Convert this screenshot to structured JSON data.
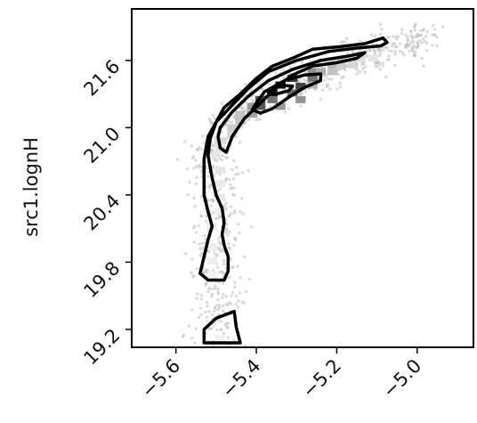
{
  "chart_data": {
    "type": "scatter",
    "subtype": "2d-histogram-with-density-contours",
    "title": "",
    "xlabel": "",
    "ylabel": "src1.lognH",
    "xlim": [
      -5.71,
      -4.86
    ],
    "ylim": [
      19.04,
      22.06
    ],
    "x_ticks": [
      -5.6,
      -5.4,
      -5.2,
      -5.0
    ],
    "y_ticks": [
      19.2,
      19.8,
      20.4,
      21.0,
      21.6
    ],
    "x_tick_labels": [
      "−5.6",
      "−5.4",
      "−5.2",
      "−5.0"
    ],
    "y_tick_labels": [
      "19.2",
      "19.8",
      "20.4",
      "21.0",
      "21.6"
    ],
    "grid": false,
    "colormap": "greys",
    "contour_color": "#000000",
    "scatter_color": "#bdbdbd",
    "density_cells": [
      {
        "x": -5.34,
        "y": 21.38,
        "v": 1.0
      },
      {
        "x": -5.36,
        "y": 21.31,
        "v": 0.95
      },
      {
        "x": -5.31,
        "y": 21.44,
        "v": 0.8
      },
      {
        "x": -5.29,
        "y": 21.37,
        "v": 0.75
      },
      {
        "x": -5.39,
        "y": 21.25,
        "v": 0.7
      },
      {
        "x": -5.39,
        "y": 21.19,
        "v": 0.68
      },
      {
        "x": -5.31,
        "y": 21.31,
        "v": 0.6
      },
      {
        "x": -5.36,
        "y": 21.25,
        "v": 0.55
      },
      {
        "x": -5.26,
        "y": 21.44,
        "v": 0.55
      },
      {
        "x": -5.26,
        "y": 21.5,
        "v": 0.45
      },
      {
        "x": -5.29,
        "y": 21.25,
        "v": 0.42
      },
      {
        "x": -5.41,
        "y": 21.19,
        "v": 0.4
      },
      {
        "x": -5.34,
        "y": 21.19,
        "v": 0.4
      },
      {
        "x": -5.41,
        "y": 21.12,
        "v": 0.35
      },
      {
        "x": -5.24,
        "y": 21.5,
        "v": 0.32
      },
      {
        "x": -5.26,
        "y": 21.38,
        "v": 0.3
      },
      {
        "x": -5.21,
        "y": 21.56,
        "v": 0.28
      },
      {
        "x": -5.44,
        "y": 21.06,
        "v": 0.22
      },
      {
        "x": -5.44,
        "y": 21.12,
        "v": 0.22
      },
      {
        "x": -5.21,
        "y": 21.5,
        "v": 0.22
      },
      {
        "x": -5.46,
        "y": 21.0,
        "v": 0.18
      },
      {
        "x": -5.46,
        "y": 20.94,
        "v": 0.16
      },
      {
        "x": -5.19,
        "y": 21.56,
        "v": 0.18
      },
      {
        "x": -5.16,
        "y": 21.56,
        "v": 0.14
      },
      {
        "x": -5.49,
        "y": 20.88,
        "v": 0.12
      },
      {
        "x": -5.49,
        "y": 20.81,
        "v": 0.1
      },
      {
        "x": -5.14,
        "y": 21.62,
        "v": 0.1
      },
      {
        "x": -5.11,
        "y": 21.62,
        "v": 0.08
      },
      {
        "x": -5.51,
        "y": 20.75,
        "v": 0.08
      },
      {
        "x": -5.49,
        "y": 20.62,
        "v": 0.07
      },
      {
        "x": -5.49,
        "y": 20.5,
        "v": 0.06
      },
      {
        "x": -5.49,
        "y": 20.38,
        "v": 0.06
      },
      {
        "x": -5.49,
        "y": 20.25,
        "v": 0.05
      },
      {
        "x": -5.51,
        "y": 20.12,
        "v": 0.05
      },
      {
        "x": -5.51,
        "y": 19.94,
        "v": 0.04
      },
      {
        "x": -5.51,
        "y": 19.81,
        "v": 0.04
      },
      {
        "x": -5.51,
        "y": 19.69,
        "v": 0.03
      },
      {
        "x": -5.51,
        "y": 19.25,
        "v": 0.03
      },
      {
        "x": -5.49,
        "y": 19.12,
        "v": 0.03
      }
    ],
    "contours": [
      {
        "level": "outer",
        "points": [
          [
            -5.53,
            20.72
          ],
          [
            -5.52,
            20.92
          ],
          [
            -5.5,
            21.05
          ],
          [
            -5.46,
            21.2
          ],
          [
            -5.42,
            21.35
          ],
          [
            -5.37,
            21.5
          ],
          [
            -5.3,
            21.6
          ],
          [
            -5.22,
            21.68
          ],
          [
            -5.15,
            21.71
          ],
          [
            -5.09,
            21.73
          ],
          [
            -5.075,
            21.76
          ],
          [
            -5.085,
            21.8
          ],
          [
            -5.13,
            21.75
          ],
          [
            -5.2,
            21.72
          ],
          [
            -5.26,
            21.7
          ],
          [
            -5.31,
            21.62
          ],
          [
            -5.36,
            21.55
          ],
          [
            -5.4,
            21.44
          ],
          [
            -5.44,
            21.3
          ],
          [
            -5.48,
            21.18
          ],
          [
            -5.5,
            21.05
          ],
          [
            -5.515,
            20.9
          ],
          [
            -5.52,
            20.75
          ],
          [
            -5.51,
            20.55
          ],
          [
            -5.5,
            20.4
          ],
          [
            -5.485,
            20.28
          ],
          [
            -5.48,
            20.15
          ],
          [
            -5.485,
            20.05
          ],
          [
            -5.48,
            19.95
          ],
          [
            -5.47,
            19.85
          ],
          [
            -5.47,
            19.72
          ],
          [
            -5.48,
            19.64
          ],
          [
            -5.52,
            19.64
          ],
          [
            -5.54,
            19.7
          ],
          [
            -5.53,
            19.85
          ],
          [
            -5.52,
            20.0
          ],
          [
            -5.51,
            20.12
          ],
          [
            -5.52,
            20.25
          ],
          [
            -5.53,
            20.4
          ],
          [
            -5.53,
            20.72
          ]
        ]
      },
      {
        "level": "middle",
        "points": [
          [
            -5.49,
            21.0
          ],
          [
            -5.46,
            21.14
          ],
          [
            -5.42,
            21.28
          ],
          [
            -5.37,
            21.42
          ],
          [
            -5.31,
            21.52
          ],
          [
            -5.24,
            21.6
          ],
          [
            -5.17,
            21.64
          ],
          [
            -5.13,
            21.67
          ],
          [
            -5.15,
            21.62
          ],
          [
            -5.2,
            21.58
          ],
          [
            -5.26,
            21.55
          ],
          [
            -5.31,
            21.47
          ],
          [
            -5.35,
            21.36
          ],
          [
            -5.39,
            21.22
          ],
          [
            -5.43,
            21.08
          ],
          [
            -5.46,
            20.92
          ],
          [
            -5.475,
            20.78
          ],
          [
            -5.49,
            20.82
          ],
          [
            -5.495,
            20.92
          ],
          [
            -5.49,
            21.0
          ]
        ]
      },
      {
        "level": "inner",
        "points": [
          [
            -5.4,
            21.22
          ],
          [
            -5.38,
            21.32
          ],
          [
            -5.33,
            21.42
          ],
          [
            -5.28,
            21.47
          ],
          [
            -5.24,
            21.48
          ],
          [
            -5.24,
            21.42
          ],
          [
            -5.28,
            21.36
          ],
          [
            -5.32,
            21.27
          ],
          [
            -5.36,
            21.17
          ],
          [
            -5.39,
            21.13
          ],
          [
            -5.41,
            21.16
          ],
          [
            -5.4,
            21.22
          ]
        ]
      },
      {
        "level": "innermost",
        "points": [
          [
            -5.37,
            21.31
          ],
          [
            -5.34,
            21.38
          ],
          [
            -5.31,
            21.37
          ],
          [
            -5.32,
            21.33
          ],
          [
            -5.35,
            21.3
          ],
          [
            -5.37,
            21.31
          ]
        ]
      },
      {
        "level": "outer-island",
        "points": [
          [
            -5.53,
            19.08
          ],
          [
            -5.53,
            19.2
          ],
          [
            -5.5,
            19.3
          ],
          [
            -5.455,
            19.36
          ],
          [
            -5.45,
            19.22
          ],
          [
            -5.44,
            19.08
          ]
        ]
      }
    ]
  }
}
